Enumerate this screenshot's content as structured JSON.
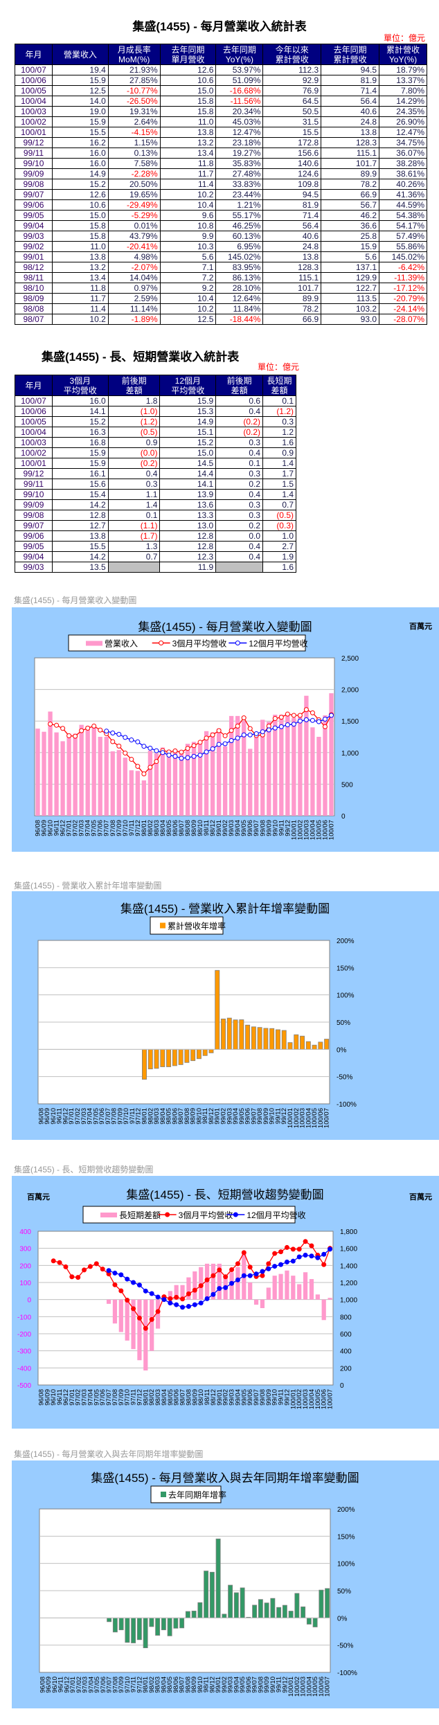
{
  "monthly_table": {
    "title": "集盛(1455) - 每月營業收入統計表",
    "unit": "單位：億元",
    "headers": [
      "年月",
      "營業收入",
      "月成長率\nMoM(%)",
      "去年同期\n單月營收",
      "去年同期\nYoY(%)",
      "今年以來\n累計營收",
      "去年同期\n累計營收",
      "累計營收\nYoY(%)"
    ],
    "rows": [
      [
        "100/07",
        "19.4",
        "21.93%",
        "12.6",
        "53.97%",
        "112.3",
        "94.5",
        "18.79%"
      ],
      [
        "100/06",
        "15.9",
        "27.85%",
        "10.6",
        "51.09%",
        "92.9",
        "81.9",
        "13.37%"
      ],
      [
        "100/05",
        "12.5",
        "-10.77%",
        "15.0",
        "-16.68%",
        "76.9",
        "71.4",
        "7.80%"
      ],
      [
        "100/04",
        "14.0",
        "-26.50%",
        "15.8",
        "-11.56%",
        "64.5",
        "56.4",
        "14.29%"
      ],
      [
        "100/03",
        "19.0",
        "19.31%",
        "15.8",
        "20.34%",
        "50.5",
        "40.6",
        "24.35%"
      ],
      [
        "100/02",
        "15.9",
        "2.64%",
        "11.0",
        "45.03%",
        "31.5",
        "24.8",
        "26.90%"
      ],
      [
        "100/01",
        "15.5",
        "-4.15%",
        "13.8",
        "12.47%",
        "15.5",
        "13.8",
        "12.47%"
      ],
      [
        "99/12",
        "16.2",
        "1.15%",
        "13.2",
        "23.18%",
        "172.8",
        "128.3",
        "34.75%"
      ],
      [
        "99/11",
        "16.0",
        "0.13%",
        "13.4",
        "19.27%",
        "156.6",
        "115.1",
        "36.07%"
      ],
      [
        "99/10",
        "16.0",
        "7.58%",
        "11.8",
        "35.83%",
        "140.6",
        "101.7",
        "38.28%"
      ],
      [
        "99/09",
        "14.9",
        "-2.28%",
        "11.7",
        "27.48%",
        "124.6",
        "89.9",
        "38.61%"
      ],
      [
        "99/08",
        "15.2",
        "20.50%",
        "11.4",
        "33.83%",
        "109.8",
        "78.2",
        "40.26%"
      ],
      [
        "99/07",
        "12.6",
        "19.65%",
        "10.2",
        "23.44%",
        "94.5",
        "66.9",
        "41.36%"
      ],
      [
        "99/06",
        "10.6",
        "-29.49%",
        "10.4",
        "1.21%",
        "81.9",
        "56.7",
        "44.59%"
      ],
      [
        "99/05",
        "15.0",
        "-5.29%",
        "9.6",
        "55.17%",
        "71.4",
        "46.2",
        "54.38%"
      ],
      [
        "99/04",
        "15.8",
        "0.01%",
        "10.8",
        "46.25%",
        "56.4",
        "36.6",
        "54.17%"
      ],
      [
        "99/03",
        "15.8",
        "43.79%",
        "9.9",
        "60.13%",
        "40.6",
        "25.8",
        "57.49%"
      ],
      [
        "99/02",
        "11.0",
        "-20.41%",
        "10.3",
        "6.95%",
        "24.8",
        "15.9",
        "55.86%"
      ],
      [
        "99/01",
        "13.8",
        "4.98%",
        "5.6",
        "145.02%",
        "13.8",
        "5.6",
        "145.02%"
      ],
      [
        "98/12",
        "13.2",
        "-2.07%",
        "7.1",
        "83.95%",
        "128.3",
        "137.1",
        "-6.42%"
      ],
      [
        "98/11",
        "13.4",
        "14.04%",
        "7.2",
        "86.13%",
        "115.1",
        "129.9",
        "-11.39%"
      ],
      [
        "98/10",
        "11.8",
        "0.97%",
        "9.2",
        "28.10%",
        "101.7",
        "122.7",
        "-17.12%"
      ],
      [
        "98/09",
        "11.7",
        "2.59%",
        "10.4",
        "12.64%",
        "89.9",
        "113.5",
        "-20.79%"
      ],
      [
        "98/08",
        "11.4",
        "11.14%",
        "10.2",
        "11.84%",
        "78.2",
        "103.2",
        "-24.14%"
      ],
      [
        "98/07",
        "10.2",
        "-1.89%",
        "12.5",
        "-18.44%",
        "66.9",
        "93.0",
        "-28.07%"
      ]
    ]
  },
  "trend_table": {
    "title": "集盛(1455) - 長、短期營業收入統計表",
    "unit": "單位：億元",
    "headers": [
      "年月",
      "3個月\n平均營收",
      "前後期\n差額",
      "12個月\n平均營收",
      "前後期\n差額",
      "長短期\n差額"
    ],
    "rows": [
      [
        "100/07",
        "16.0",
        "1.8",
        "15.9",
        "0.6",
        "0.1"
      ],
      [
        "100/06",
        "14.1",
        "(1.0)",
        "15.3",
        "0.4",
        "(1.2)"
      ],
      [
        "100/05",
        "15.2",
        "(1.2)",
        "14.9",
        "(0.2)",
        "0.3"
      ],
      [
        "100/04",
        "16.3",
        "(0.5)",
        "15.1",
        "(0.2)",
        "1.2"
      ],
      [
        "100/03",
        "16.8",
        "0.9",
        "15.2",
        "0.3",
        "1.6"
      ],
      [
        "100/02",
        "15.9",
        "(0.0)",
        "15.0",
        "0.4",
        "0.9"
      ],
      [
        "100/01",
        "15.9",
        "(0.2)",
        "14.5",
        "0.1",
        "1.4"
      ],
      [
        "99/12",
        "16.1",
        "0.4",
        "14.4",
        "0.3",
        "1.7"
      ],
      [
        "99/11",
        "15.6",
        "0.3",
        "14.1",
        "0.2",
        "1.5"
      ],
      [
        "99/10",
        "15.4",
        "1.1",
        "13.9",
        "0.4",
        "1.4"
      ],
      [
        "99/09",
        "14.2",
        "1.4",
        "13.6",
        "0.3",
        "0.7"
      ],
      [
        "99/08",
        "12.8",
        "0.1",
        "13.3",
        "0.3",
        "(0.5)"
      ],
      [
        "99/07",
        "12.7",
        "(1.1)",
        "13.0",
        "0.2",
        "(0.3)"
      ],
      [
        "99/06",
        "13.8",
        "(1.7)",
        "12.8",
        "0.0",
        "1.0"
      ],
      [
        "99/05",
        "15.5",
        "1.3",
        "12.8",
        "0.4",
        "2.7"
      ],
      [
        "99/04",
        "14.2",
        "0.7",
        "12.3",
        "0.4",
        "1.9"
      ],
      [
        "99/03",
        "13.5",
        "",
        "11.9",
        "",
        "1.6"
      ]
    ]
  },
  "colors": {
    "header_bg": "#000080",
    "negative": "#ff0000",
    "panel_bg": "#99ccff",
    "revenue_bar": "#ff99cc",
    "ma3": "#ff0000",
    "ma12": "#0000ff",
    "cum_yoy_bar": "#ff9900",
    "yoy_bar": "#339966",
    "left_axis": "#ff00ff"
  },
  "chart_data": [
    {
      "caption": "集盛(1455) - 每月營業收入變動圖",
      "title": "集盛(1455) - 每月營業收入變動圖",
      "type": "bar+line",
      "unit_right": "百萬元",
      "categories": [
        "96/08",
        "96/09",
        "96/10",
        "96/11",
        "96/12",
        "97/01",
        "97/02",
        "97/03",
        "97/04",
        "97/05",
        "97/06",
        "97/07",
        "97/08",
        "97/09",
        "97/10",
        "97/11",
        "97/12",
        "98/01",
        "98/02",
        "98/03",
        "98/04",
        "98/05",
        "98/06",
        "98/07",
        "98/08",
        "98/09",
        "98/10",
        "98/11",
        "98/12",
        "99/01",
        "99/02",
        "99/03",
        "99/04",
        "99/05",
        "99/06",
        "99/07",
        "99/08",
        "99/09",
        "99/10",
        "99/11",
        "99/12",
        "100/01",
        "100/02",
        "100/03",
        "100/04",
        "100/05",
        "100/06",
        "100/07"
      ],
      "ylim": [
        0,
        2500
      ],
      "yticks": [
        "0",
        "500",
        "1,000",
        "1,500",
        "2,000",
        "2,500"
      ],
      "grid": true,
      "legend": "top-center",
      "series": [
        {
          "name": "營業收入",
          "kind": "bar",
          "axis": "right",
          "values": [
            1380,
            1330,
            1650,
            1320,
            1180,
            1300,
            1300,
            1440,
            1420,
            1400,
            1250,
            1250,
            1020,
            1040,
            920,
            720,
            710,
            560,
            1030,
            990,
            1080,
            960,
            1040,
            1020,
            1140,
            1170,
            1180,
            1340,
            1320,
            1380,
            1100,
            1580,
            1580,
            1500,
            1060,
            1260,
            1520,
            1490,
            1600,
            1600,
            1620,
            1550,
            1590,
            1900,
            1400,
            1250,
            1590,
            1940
          ]
        },
        {
          "name": "3個月平均營收",
          "kind": "line",
          "axis": "right",
          "values": [
            null,
            null,
            1453,
            1433,
            1383,
            1267,
            1260,
            1347,
            1387,
            1420,
            1357,
            1300,
            1173,
            1103,
            993,
            893,
            783,
            663,
            767,
            860,
            1033,
            1010,
            1027,
            1007,
            1067,
            1110,
            1163,
            1230,
            1280,
            1347,
            1267,
            1350,
            1420,
            1550,
            1380,
            1270,
            1280,
            1420,
            1540,
            1560,
            1610,
            1590,
            1590,
            1680,
            1630,
            1520,
            1410,
            1600
          ]
        },
        {
          "name": "12個月平均營收",
          "kind": "line",
          "axis": "right",
          "values": [
            null,
            null,
            null,
            null,
            null,
            null,
            null,
            null,
            null,
            null,
            null,
            1340,
            1310,
            1290,
            1240,
            1200,
            1170,
            1100,
            1070,
            1030,
            1000,
            960,
            940,
            910,
            920,
            940,
            960,
            1010,
            1060,
            1130,
            1140,
            1190,
            1230,
            1280,
            1280,
            1300,
            1330,
            1360,
            1390,
            1410,
            1440,
            1450,
            1500,
            1520,
            1510,
            1490,
            1530,
            1590
          ]
        }
      ]
    },
    {
      "caption": "集盛(1455) -  營業收入累計年增率變動圖",
      "title": "集盛(1455) -  營業收入累計年增率變動圖",
      "type": "bar",
      "ylim": [
        -100,
        200
      ],
      "yticks": [
        "-100%",
        "-50%",
        "0%",
        "50%",
        "100%",
        "150%",
        "200%"
      ],
      "grid": true,
      "legend": "top-center",
      "series": [
        {
          "name": "累計營收年增率",
          "kind": "bar",
          "axis": "right",
          "values": [
            null,
            null,
            null,
            null,
            null,
            null,
            null,
            null,
            null,
            null,
            null,
            null,
            null,
            null,
            null,
            null,
            null,
            -55,
            -36,
            -35,
            -32,
            -32,
            -30,
            -28.07,
            -24.14,
            -20.79,
            -17.12,
            -11.39,
            -6.42,
            145.02,
            55.86,
            57.49,
            54.17,
            54.38,
            44.59,
            41.36,
            40.26,
            38.61,
            38.28,
            36.07,
            34.75,
            12.47,
            26.9,
            24.35,
            14.29,
            7.8,
            13.37,
            18.79
          ]
        }
      ]
    },
    {
      "caption": "集盛(1455) -  長、短期營收趨勢變動圖",
      "title": "集盛(1455) -  長、短期營收趨勢變動圖",
      "type": "bar+line",
      "unit_left": "百萬元",
      "unit_right": "百萬元",
      "ylim_left": [
        -500,
        400
      ],
      "yticks_left": [
        "-500",
        "-400",
        "-300",
        "-200",
        "-100",
        "0",
        "100",
        "200",
        "300",
        "400"
      ],
      "ylim": [
        0,
        1800
      ],
      "yticks": [
        "0",
        "200",
        "400",
        "600",
        "800",
        "1,000",
        "1,200",
        "1,400",
        "1,600",
        "1,800"
      ],
      "grid": true,
      "legend": "top-center",
      "series": [
        {
          "name": "長短期差額",
          "kind": "bar",
          "axis": "left",
          "values": [
            null,
            null,
            null,
            null,
            null,
            null,
            null,
            null,
            null,
            null,
            null,
            -25,
            -140,
            -190,
            -240,
            -290,
            -355,
            -415,
            -300,
            -170,
            25,
            50,
            85,
            85,
            130,
            165,
            190,
            210,
            210,
            210,
            130,
            160,
            190,
            270,
            100,
            -30,
            -50,
            70,
            140,
            150,
            170,
            140,
            90,
            160,
            120,
            30,
            -120,
            10
          ]
        },
        {
          "name": "3個月平均營收",
          "kind": "line",
          "axis": "right",
          "values": [
            null,
            null,
            1453,
            1433,
            1383,
            1267,
            1260,
            1347,
            1387,
            1420,
            1357,
            1300,
            1173,
            1103,
            993,
            893,
            783,
            663,
            767,
            860,
            1033,
            1010,
            1027,
            1007,
            1067,
            1110,
            1163,
            1230,
            1280,
            1347,
            1267,
            1350,
            1420,
            1550,
            1380,
            1270,
            1280,
            1420,
            1540,
            1560,
            1610,
            1590,
            1590,
            1680,
            1630,
            1520,
            1410,
            1600
          ]
        },
        {
          "name": "12個月平均營收",
          "kind": "line",
          "axis": "right",
          "values": [
            null,
            null,
            null,
            null,
            null,
            null,
            null,
            null,
            null,
            null,
            null,
            1340,
            1310,
            1290,
            1240,
            1200,
            1170,
            1100,
            1070,
            1030,
            1000,
            960,
            940,
            910,
            920,
            940,
            960,
            1010,
            1060,
            1130,
            1140,
            1190,
            1230,
            1280,
            1280,
            1300,
            1330,
            1360,
            1390,
            1410,
            1440,
            1450,
            1500,
            1520,
            1510,
            1490,
            1530,
            1590
          ]
        }
      ]
    },
    {
      "caption": "集盛(1455) -  每月營業收入與去年同期年增率變動圖",
      "title": "集盛(1455) -  每月營業收入與去年同期年增率變動圖",
      "type": "bar",
      "ylim": [
        -100,
        200
      ],
      "yticks": [
        "-100%",
        "-50%",
        "0%",
        "50%",
        "100%",
        "150%",
        "200%"
      ],
      "grid": true,
      "legend": "top-center",
      "series": [
        {
          "name": "去年同期年增率",
          "kind": "bar",
          "axis": "right",
          "values": [
            null,
            null,
            null,
            null,
            null,
            null,
            null,
            null,
            null,
            null,
            null,
            -7,
            -26,
            -22,
            -45,
            -46,
            -40,
            -55,
            -16,
            -32,
            -22,
            -33,
            -19,
            -18.44,
            11.84,
            12.64,
            28.1,
            86.13,
            83.95,
            145.02,
            6.95,
            60.13,
            46.25,
            55.17,
            1.21,
            23.44,
            33.83,
            27.48,
            35.83,
            19.27,
            23.18,
            12.47,
            45.03,
            20.34,
            -11.56,
            -16.68,
            51.09,
            53.97
          ]
        }
      ]
    }
  ]
}
